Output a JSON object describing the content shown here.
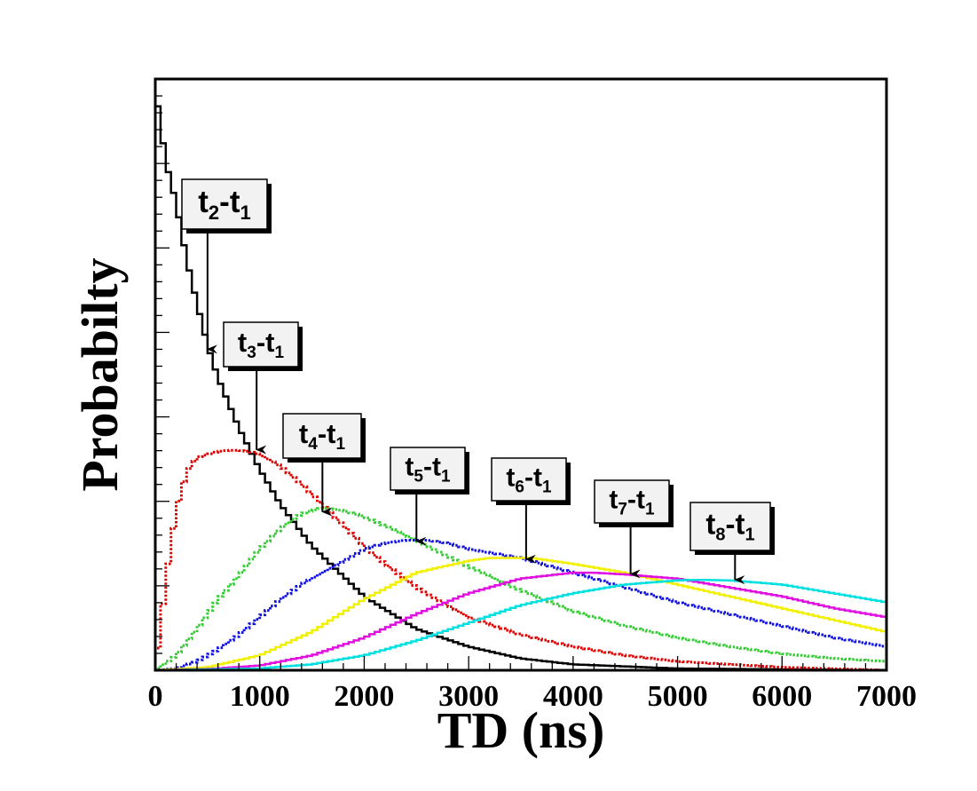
{
  "chart_data": {
    "type": "line",
    "style": "step-histogram",
    "title": "",
    "xlabel": "TD (ns)",
    "ylabel": "Probabilty",
    "xlim": [
      0,
      7000
    ],
    "ylim": [
      0,
      1.0
    ],
    "x_ticks": [
      0,
      1000,
      2000,
      3000,
      4000,
      5000,
      6000,
      7000
    ],
    "x_tick_labels": [
      "0",
      "1000",
      "2000",
      "3000",
      "4000",
      "5000",
      "6000",
      "7000"
    ],
    "y_tick_labels_shown": false,
    "grid": false,
    "series": [
      {
        "name": "t2-t1",
        "color": "#000000",
        "line": "solid",
        "x": [
          0,
          100,
          200,
          300,
          400,
          500,
          600,
          800,
          1000,
          1200,
          1500,
          2000,
          2500,
          3000,
          3500,
          4000,
          5000,
          7000
        ],
        "y": [
          0.985,
          0.86,
          0.79,
          0.695,
          0.62,
          0.55,
          0.495,
          0.41,
          0.34,
          0.28,
          0.21,
          0.125,
          0.07,
          0.04,
          0.02,
          0.01,
          0.003,
          0.0
        ]
      },
      {
        "name": "t3-t1",
        "color": "#e00000",
        "line": "dotted",
        "x": [
          0,
          100,
          200,
          300,
          400,
          500,
          600,
          700,
          800,
          900,
          1000,
          1200,
          1400,
          1600,
          1800,
          2000,
          2200,
          2500,
          3000,
          3500,
          4000,
          4500,
          5000,
          6000,
          7000
        ],
        "y": [
          0.0,
          0.15,
          0.27,
          0.335,
          0.36,
          0.365,
          0.37,
          0.372,
          0.372,
          0.37,
          0.365,
          0.345,
          0.315,
          0.28,
          0.245,
          0.21,
          0.18,
          0.14,
          0.09,
          0.06,
          0.04,
          0.025,
          0.015,
          0.005,
          0.0
        ]
      },
      {
        "name": "t4-t1",
        "color": "#33cc33",
        "line": "dotted",
        "x": [
          0,
          200,
          400,
          600,
          800,
          1000,
          1200,
          1400,
          1600,
          1800,
          2000,
          2500,
          3000,
          3500,
          4000,
          4500,
          5000,
          5500,
          6000,
          6500,
          7000
        ],
        "y": [
          0.0,
          0.025,
          0.07,
          0.12,
          0.16,
          0.205,
          0.24,
          0.265,
          0.275,
          0.27,
          0.26,
          0.22,
          0.175,
          0.135,
          0.1,
          0.075,
          0.055,
          0.04,
          0.028,
          0.02,
          0.015
        ]
      },
      {
        "name": "t5-t1",
        "color": "#1010e0",
        "line": "dotted",
        "x": [
          0,
          200,
          400,
          600,
          800,
          1000,
          1200,
          1400,
          1600,
          1800,
          2000,
          2200,
          2400,
          2600,
          2800,
          3000,
          3500,
          4000,
          4500,
          5000,
          5500,
          6000,
          6500,
          7000
        ],
        "y": [
          0.0,
          0.003,
          0.015,
          0.035,
          0.06,
          0.09,
          0.12,
          0.145,
          0.165,
          0.185,
          0.205,
          0.215,
          0.22,
          0.22,
          0.215,
          0.205,
          0.19,
          0.165,
          0.14,
          0.115,
          0.095,
          0.075,
          0.055,
          0.04
        ]
      },
      {
        "name": "t6-t1",
        "color": "#f0f000",
        "line": "solid",
        "x": [
          0,
          500,
          1000,
          1500,
          2000,
          2500,
          3000,
          3200,
          3400,
          3600,
          4000,
          4500,
          5000,
          5500,
          6000,
          6500,
          7000
        ],
        "y": [
          0.0,
          0.005,
          0.025,
          0.065,
          0.12,
          0.165,
          0.185,
          0.19,
          0.19,
          0.19,
          0.18,
          0.165,
          0.145,
          0.125,
          0.105,
          0.085,
          0.065
        ]
      },
      {
        "name": "t7-t1",
        "color": "#e010e0",
        "line": "solid",
        "x": [
          0,
          500,
          1000,
          1500,
          2000,
          2500,
          3000,
          3500,
          4000,
          4200,
          4500,
          5000,
          5500,
          6000,
          6500,
          7000
        ],
        "y": [
          0.0,
          0.002,
          0.008,
          0.025,
          0.055,
          0.095,
          0.13,
          0.155,
          0.165,
          0.165,
          0.162,
          0.155,
          0.14,
          0.125,
          0.105,
          0.09
        ]
      },
      {
        "name": "t8-t1",
        "color": "#00e0e0",
        "line": "solid",
        "x": [
          0,
          1000,
          1500,
          2000,
          2500,
          3000,
          3500,
          4000,
          4500,
          5000,
          5200,
          5500,
          6000,
          6500,
          7000
        ],
        "y": [
          0.0,
          0.003,
          0.01,
          0.025,
          0.05,
          0.08,
          0.11,
          0.13,
          0.145,
          0.152,
          0.153,
          0.152,
          0.145,
          0.13,
          0.115
        ]
      }
    ],
    "annotations": [
      {
        "base": "t",
        "sub1": "2",
        "sep": "-t",
        "sub2": "1",
        "arrow_x": 500,
        "arrow_y": 0.54
      },
      {
        "base": "t",
        "sub1": "3",
        "sep": "-t",
        "sub2": "1",
        "arrow_x": 970,
        "arrow_y": 0.37
      },
      {
        "base": "t",
        "sub1": "4",
        "sep": "-t",
        "sub2": "1",
        "arrow_x": 1600,
        "arrow_y": 0.265
      },
      {
        "base": "t",
        "sub1": "5",
        "sep": "-t",
        "sub2": "1",
        "arrow_x": 2500,
        "arrow_y": 0.215
      },
      {
        "base": "t",
        "sub1": "6",
        "sep": "-t",
        "sub2": "1",
        "arrow_x": 3550,
        "arrow_y": 0.185
      },
      {
        "base": "t",
        "sub1": "7",
        "sep": "-t",
        "sub2": "1",
        "arrow_x": 4550,
        "arrow_y": 0.16
      },
      {
        "base": "t",
        "sub1": "8",
        "sep": "-t",
        "sub2": "1",
        "arrow_x": 5550,
        "arrow_y": 0.15
      }
    ]
  }
}
